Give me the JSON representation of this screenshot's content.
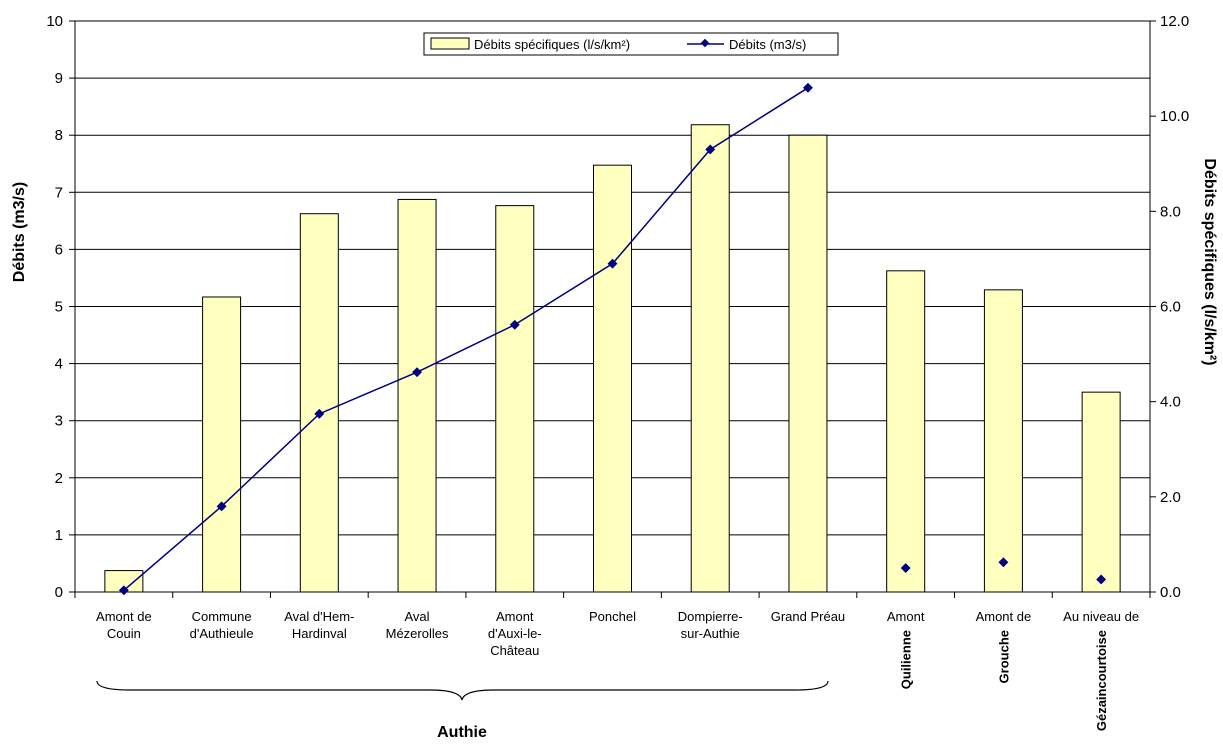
{
  "chart_data": {
    "type": "bar",
    "categories": [
      [
        "Amont de",
        "Couin"
      ],
      [
        "Commune",
        "d'Authieule"
      ],
      [
        "Aval d'Hem-",
        "Hardinval"
      ],
      [
        "Aval",
        "Mézerolles"
      ],
      [
        "Amont",
        "d'Auxi-le-",
        "Château"
      ],
      [
        "Ponchel"
      ],
      [
        "Dompierre-",
        "sur-Authie"
      ],
      [
        "Grand Préau"
      ],
      [
        "Amont",
        "Quilienne"
      ],
      [
        "Amont de",
        "Grouche"
      ],
      [
        "Au niveau de",
        "Gézaincourtoise"
      ]
    ],
    "series": [
      {
        "name": "Débits spécifiques (l/s/km²)",
        "type": "bar",
        "axis": "right",
        "values": [
          0.45,
          6.2,
          7.95,
          8.25,
          8.12,
          8.97,
          9.82,
          9.6,
          6.75,
          6.35,
          4.2
        ],
        "color": "#ffffc0"
      },
      {
        "name": "Débits (m3/s)",
        "type": "line",
        "axis": "left",
        "values": [
          0.03,
          1.5,
          3.12,
          3.85,
          4.68,
          5.75,
          7.75,
          8.83,
          0.42,
          0.52,
          0.22
        ],
        "connected_count": 8,
        "color": "#000080"
      }
    ],
    "ylabel_left": "Débits (m3/s)",
    "ylabel_right": "Débits spécifiques (l/s/km²)",
    "ylim_left": [
      0,
      10
    ],
    "ylim_right": [
      0,
      12
    ],
    "yticks_left": [
      "0",
      "1",
      "2",
      "3",
      "4",
      "5",
      "6",
      "7",
      "8",
      "9",
      "10"
    ],
    "yticks_right": [
      "0.0",
      "2.0",
      "4.0",
      "6.0",
      "8.0",
      "10.0",
      "12.0"
    ],
    "group_label": "Authie",
    "grid": true,
    "legend_position": "top-center"
  }
}
